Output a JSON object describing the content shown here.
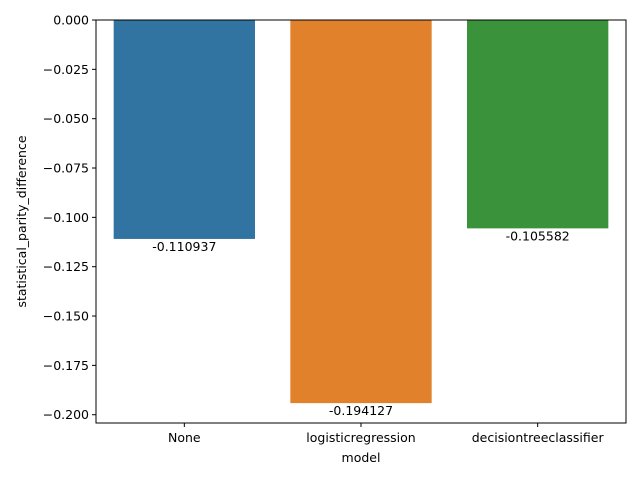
{
  "chart_data": {
    "type": "bar",
    "categories": [
      "None",
      "logisticregression",
      "decisiontreeclassifier"
    ],
    "values": [
      -0.110937,
      -0.194127,
      -0.105582
    ],
    "data_labels": [
      "-0.110937",
      "-0.194127",
      "-0.105582"
    ],
    "colors": [
      "#3274a1",
      "#e1812c",
      "#3a923a"
    ],
    "xlabel": "model",
    "ylabel": "statistical_parity_difference",
    "ylim": [
      -0.2042,
      0.0
    ],
    "yticks": [
      0.0,
      -0.025,
      -0.05,
      -0.075,
      -0.1,
      -0.125,
      -0.15,
      -0.175,
      -0.2
    ],
    "ytick_labels": [
      "0.000",
      "−0.025",
      "−0.050",
      "−0.075",
      "−0.100",
      "−0.125",
      "−0.150",
      "−0.175",
      "−0.200"
    ],
    "grid": false,
    "legend": "none"
  }
}
